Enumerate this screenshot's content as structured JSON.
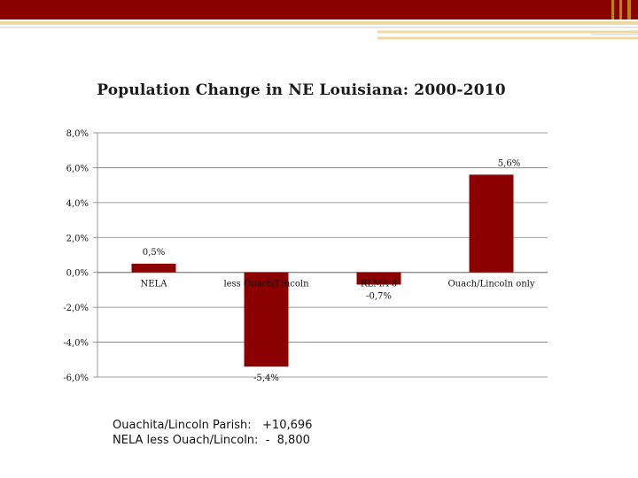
{
  "chart_data": {
    "type": "bar",
    "title": "Population Change in NE Louisiana: 2000-2010",
    "categories": [
      "NELA",
      "less Ouach/Lincoln",
      "RLMA 8",
      "Ouach/Lincoln only"
    ],
    "values": [
      0.5,
      -5.4,
      -0.7,
      5.6
    ],
    "data_labels": [
      "0,5%",
      "-5,4%",
      "-0,7%",
      "5,6%"
    ],
    "y_ticks": [
      8,
      6,
      4,
      2,
      0,
      -2,
      -4,
      -6
    ],
    "y_tick_labels": [
      "8,0%",
      "6,0%",
      "4,0%",
      "2,0%",
      "0,0%",
      "-2,0%",
      "-4,0%",
      "-6,0%"
    ],
    "ylim": [
      -6,
      8
    ],
    "xlabel": "",
    "ylabel": "",
    "grid": true,
    "bar_color": "#8b0000"
  },
  "notes": {
    "line1": "Ouachita/Lincoln Parish:   +10,696",
    "line2": "NELA less Ouach/Lincoln:  -  8,800"
  },
  "colors": {
    "header": "#8b0000",
    "accent": "#b8860b"
  }
}
